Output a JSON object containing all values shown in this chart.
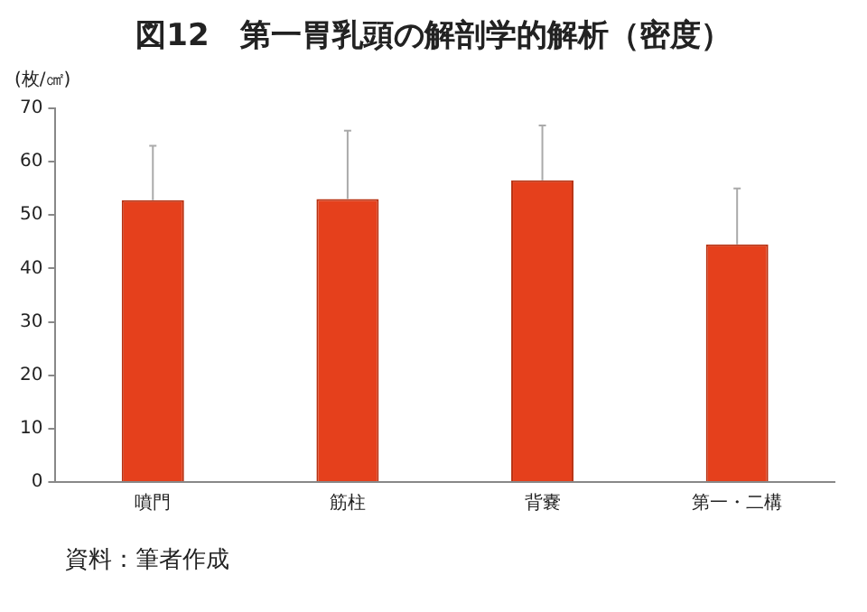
{
  "chart_data": {
    "type": "bar",
    "title": "図12　第一胃乳頭の解剖学的解析（密度）",
    "ylabel": "(枚/㎠)",
    "categories": [
      "噴門",
      "筋柱",
      "背嚢",
      "第一・二構"
    ],
    "values": [
      52.8,
      53,
      56.5,
      44.5
    ],
    "errors": [
      [
        52.8,
        63
      ],
      [
        53,
        65.8
      ],
      [
        56.5,
        66.8
      ],
      [
        44.5,
        55
      ]
    ],
    "color": "#e5401c",
    "ylim": [
      0,
      70
    ],
    "yticks": [
      0,
      10,
      20,
      30,
      40,
      50,
      60,
      70
    ],
    "grid": false,
    "annotations": [
      "資料：筆者作成"
    ]
  }
}
